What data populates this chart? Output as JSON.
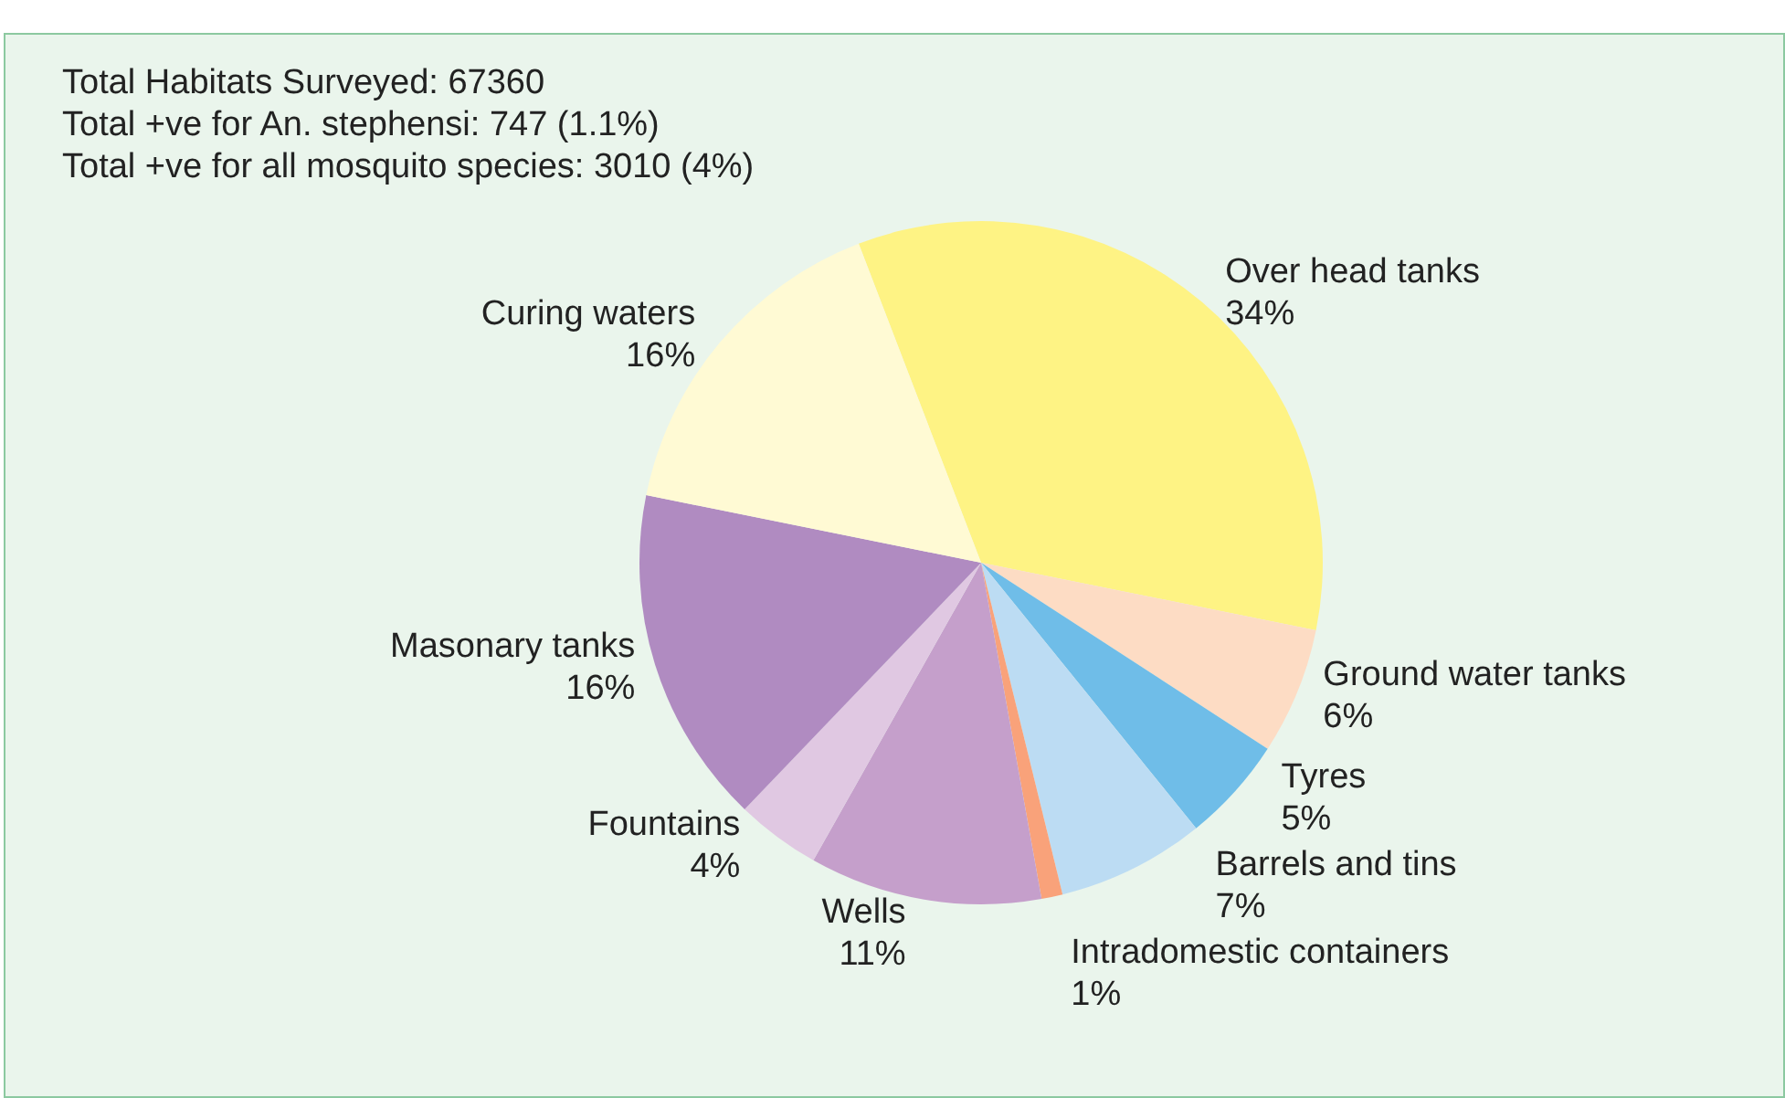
{
  "chart_data": {
    "type": "pie",
    "annotations": [
      "Total Habitats Surveyed: 67360",
      "Total +ve for An. stephensi: 747 (1.1%)",
      "Total +ve for all mosquito species: 3010 (4%)"
    ],
    "categories": [
      "Over head tanks",
      "Ground water tanks",
      "Tyres",
      "Barrels and tins",
      "Intradomestic containers",
      "Wells",
      "Fountains",
      "Masonary tanks",
      "Curing waters"
    ],
    "values": [
      34,
      6,
      5,
      7,
      1,
      11,
      4,
      16,
      16
    ],
    "colors": [
      "#fef384",
      "#fddcc4",
      "#6fbde8",
      "#bcdcf3",
      "#f9a27a",
      "#c59fcb",
      "#e0c8e2",
      "#b08bc1",
      "#fffad4"
    ],
    "value_labels": [
      "34%",
      "6%",
      "5%",
      "7%",
      "1%",
      "11%",
      "4%",
      "16%",
      "16%"
    ],
    "legend": false
  }
}
